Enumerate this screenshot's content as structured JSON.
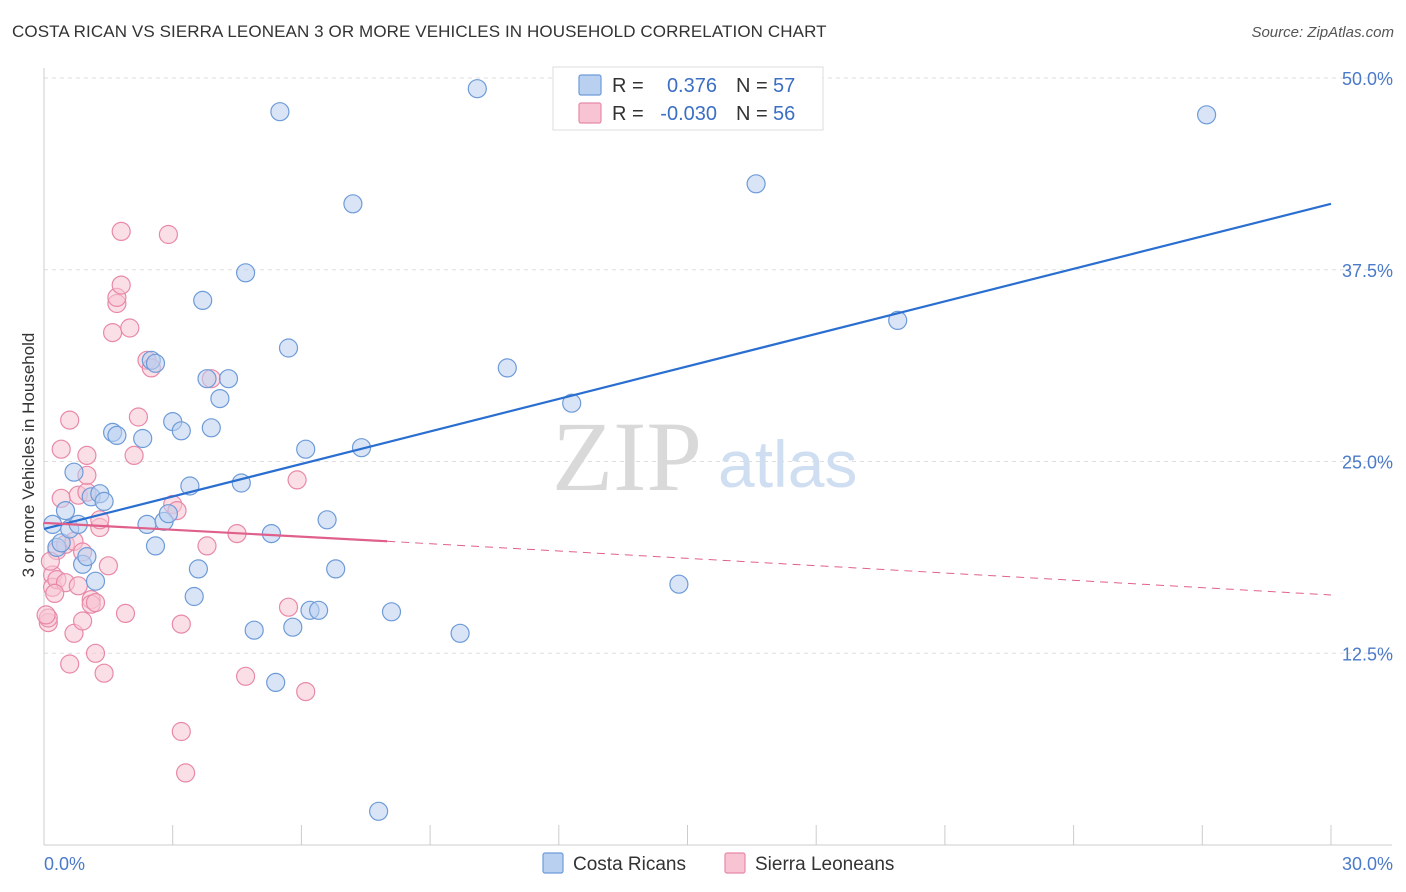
{
  "header": {
    "title": "COSTA RICAN VS SIERRA LEONEAN 3 OR MORE VEHICLES IN HOUSEHOLD CORRELATION CHART",
    "source": "Source: ZipAtlas.com"
  },
  "watermark": {
    "zip": "ZIP",
    "atlas": "atlas"
  },
  "colors": {
    "blue_fill": "#b9d0f0",
    "blue_stroke": "#6e9bd8",
    "blue_line": "#2a6fd0",
    "pink_fill": "#f8c4d4",
    "pink_stroke": "#e889a8",
    "pink_line": "#e0608c",
    "grid": "#dddddd",
    "tick_text": "#4a7ac8"
  },
  "legend": {
    "rows": [
      {
        "r_label": "R =",
        "r_value": "0.376",
        "n_label": "N =",
        "n_value": "57"
      },
      {
        "r_label": "R =",
        "r_value": "-0.030",
        "n_label": "N =",
        "n_value": "56"
      }
    ]
  },
  "chart_data": {
    "type": "scatter",
    "ylabel": "3 or more Vehicles in Household",
    "xlim": [
      0,
      30
    ],
    "ylim": [
      0,
      50
    ],
    "x_tick_labels": [
      "0.0%",
      "30.0%"
    ],
    "y_ticks": [
      12.5,
      25.0,
      37.5,
      50.0
    ],
    "y_tick_labels": [
      "12.5%",
      "25.0%",
      "37.5%",
      "50.0%"
    ],
    "grid": true,
    "legend_position": "top-center",
    "series": [
      {
        "name": "Costa Ricans",
        "color": "#6e9bd8",
        "trend": {
          "x": [
            0,
            30
          ],
          "y": [
            20.6,
            41.8
          ]
        },
        "points": [
          [
            0.2,
            20.9
          ],
          [
            0.3,
            19.4
          ],
          [
            0.4,
            19.7
          ],
          [
            0.5,
            21.8
          ],
          [
            0.6,
            20.6
          ],
          [
            0.7,
            24.3
          ],
          [
            0.8,
            20.9
          ],
          [
            0.9,
            18.3
          ],
          [
            1.0,
            18.8
          ],
          [
            1.1,
            22.7
          ],
          [
            1.2,
            17.2
          ],
          [
            1.3,
            22.9
          ],
          [
            1.4,
            22.4
          ],
          [
            1.6,
            26.9
          ],
          [
            1.7,
            26.7
          ],
          [
            2.3,
            26.5
          ],
          [
            2.5,
            31.6
          ],
          [
            2.6,
            31.4
          ],
          [
            2.4,
            20.9
          ],
          [
            2.6,
            19.5
          ],
          [
            2.8,
            21.1
          ],
          [
            2.9,
            21.6
          ],
          [
            3.0,
            27.6
          ],
          [
            3.2,
            27.0
          ],
          [
            3.4,
            23.4
          ],
          [
            3.5,
            16.2
          ],
          [
            3.6,
            18.0
          ],
          [
            3.7,
            35.5
          ],
          [
            3.8,
            30.4
          ],
          [
            3.9,
            27.2
          ],
          [
            4.1,
            29.1
          ],
          [
            4.3,
            30.4
          ],
          [
            4.6,
            23.6
          ],
          [
            4.7,
            37.3
          ],
          [
            4.9,
            14.0
          ],
          [
            5.3,
            20.3
          ],
          [
            5.4,
            10.6
          ],
          [
            5.5,
            47.8
          ],
          [
            5.7,
            32.4
          ],
          [
            5.8,
            14.2
          ],
          [
            6.1,
            25.8
          ],
          [
            6.2,
            15.3
          ],
          [
            6.4,
            15.3
          ],
          [
            6.6,
            21.2
          ],
          [
            6.8,
            18.0
          ],
          [
            7.2,
            41.8
          ],
          [
            7.4,
            25.9
          ],
          [
            7.8,
            2.2
          ],
          [
            8.1,
            15.2
          ],
          [
            9.7,
            13.8
          ],
          [
            10.1,
            49.3
          ],
          [
            10.8,
            31.1
          ],
          [
            12.3,
            28.8
          ],
          [
            14.8,
            17.0
          ],
          [
            16.6,
            43.1
          ],
          [
            19.9,
            34.2
          ],
          [
            27.1,
            47.6
          ]
        ]
      },
      {
        "name": "Sierra Leoneans",
        "color": "#e889a8",
        "trend": {
          "x": [
            0,
            8.0
          ],
          "y": [
            21.0,
            19.8
          ]
        },
        "trend_dashed": {
          "x": [
            8.0,
            30
          ],
          "y": [
            19.8,
            16.3
          ]
        },
        "points": [
          [
            0.1,
            14.5
          ],
          [
            0.1,
            14.8
          ],
          [
            0.2,
            17.6
          ],
          [
            0.2,
            16.8
          ],
          [
            0.3,
            17.3
          ],
          [
            0.3,
            19.2
          ],
          [
            0.4,
            25.8
          ],
          [
            0.4,
            22.6
          ],
          [
            0.5,
            19.6
          ],
          [
            0.5,
            17.1
          ],
          [
            0.6,
            11.8
          ],
          [
            0.6,
            27.7
          ],
          [
            0.7,
            19.8
          ],
          [
            0.7,
            13.8
          ],
          [
            0.8,
            16.9
          ],
          [
            0.8,
            22.8
          ],
          [
            0.9,
            19.1
          ],
          [
            0.9,
            14.6
          ],
          [
            1.0,
            23.0
          ],
          [
            1.0,
            25.4
          ],
          [
            1.0,
            24.1
          ],
          [
            1.1,
            16.0
          ],
          [
            1.1,
            15.7
          ],
          [
            1.2,
            12.5
          ],
          [
            1.2,
            15.8
          ],
          [
            1.3,
            20.7
          ],
          [
            1.3,
            21.2
          ],
          [
            1.4,
            11.2
          ],
          [
            1.5,
            18.2
          ],
          [
            1.6,
            33.4
          ],
          [
            1.7,
            35.3
          ],
          [
            1.7,
            35.7
          ],
          [
            1.8,
            36.5
          ],
          [
            1.8,
            40.0
          ],
          [
            1.9,
            15.1
          ],
          [
            2.0,
            33.7
          ],
          [
            2.1,
            25.4
          ],
          [
            2.2,
            27.9
          ],
          [
            2.4,
            31.6
          ],
          [
            2.5,
            31.1
          ],
          [
            2.9,
            39.8
          ],
          [
            3.0,
            22.2
          ],
          [
            3.1,
            21.8
          ],
          [
            3.2,
            14.4
          ],
          [
            3.2,
            7.4
          ],
          [
            3.3,
            4.7
          ],
          [
            3.8,
            19.5
          ],
          [
            3.9,
            30.4
          ],
          [
            4.5,
            20.3
          ],
          [
            4.7,
            11.0
          ],
          [
            5.7,
            15.5
          ],
          [
            5.9,
            23.8
          ],
          [
            6.1,
            10.0
          ],
          [
            0.05,
            15.0
          ],
          [
            0.15,
            18.5
          ],
          [
            0.25,
            16.4
          ]
        ]
      }
    ]
  }
}
